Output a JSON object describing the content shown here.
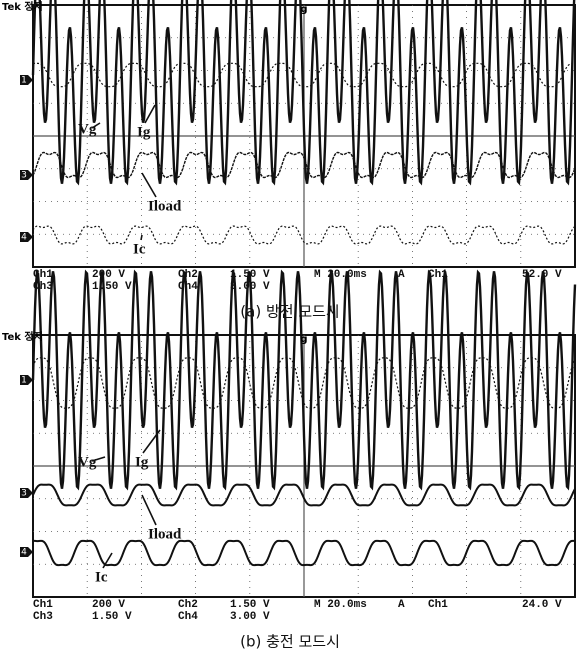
{
  "panels": [
    {
      "header": "Tek 정지",
      "trigger": "g",
      "markers": [
        "1",
        "3",
        "4"
      ],
      "labels": [
        "Vg",
        "Ig",
        "Iload",
        "Ic"
      ],
      "status_row1": [
        "Ch1",
        "200 V",
        "Ch2",
        "1.50 V",
        "M 20.0ms",
        "A",
        "Ch1",
        "52.0 V"
      ],
      "status_row2": [
        "Ch3",
        "1.50 V",
        "Ch4",
        "3.00 V"
      ],
      "caption": "(a) 방전 모드시"
    },
    {
      "header": "Tek 정지",
      "trigger": "g",
      "markers": [
        "1",
        "3",
        "4"
      ],
      "labels": [
        "Vg",
        "Ig",
        "Iload",
        "Ic"
      ],
      "status_row1": [
        "Ch1",
        "200 V",
        "Ch2",
        "1.50 V",
        "M 20.0ms",
        "A",
        "Ch1",
        "24.0 V"
      ],
      "status_row2": [
        "Ch3",
        "1.50 V",
        "Ch4",
        "3.00 V"
      ],
      "caption": "(b) 충전 모드시"
    }
  ]
}
